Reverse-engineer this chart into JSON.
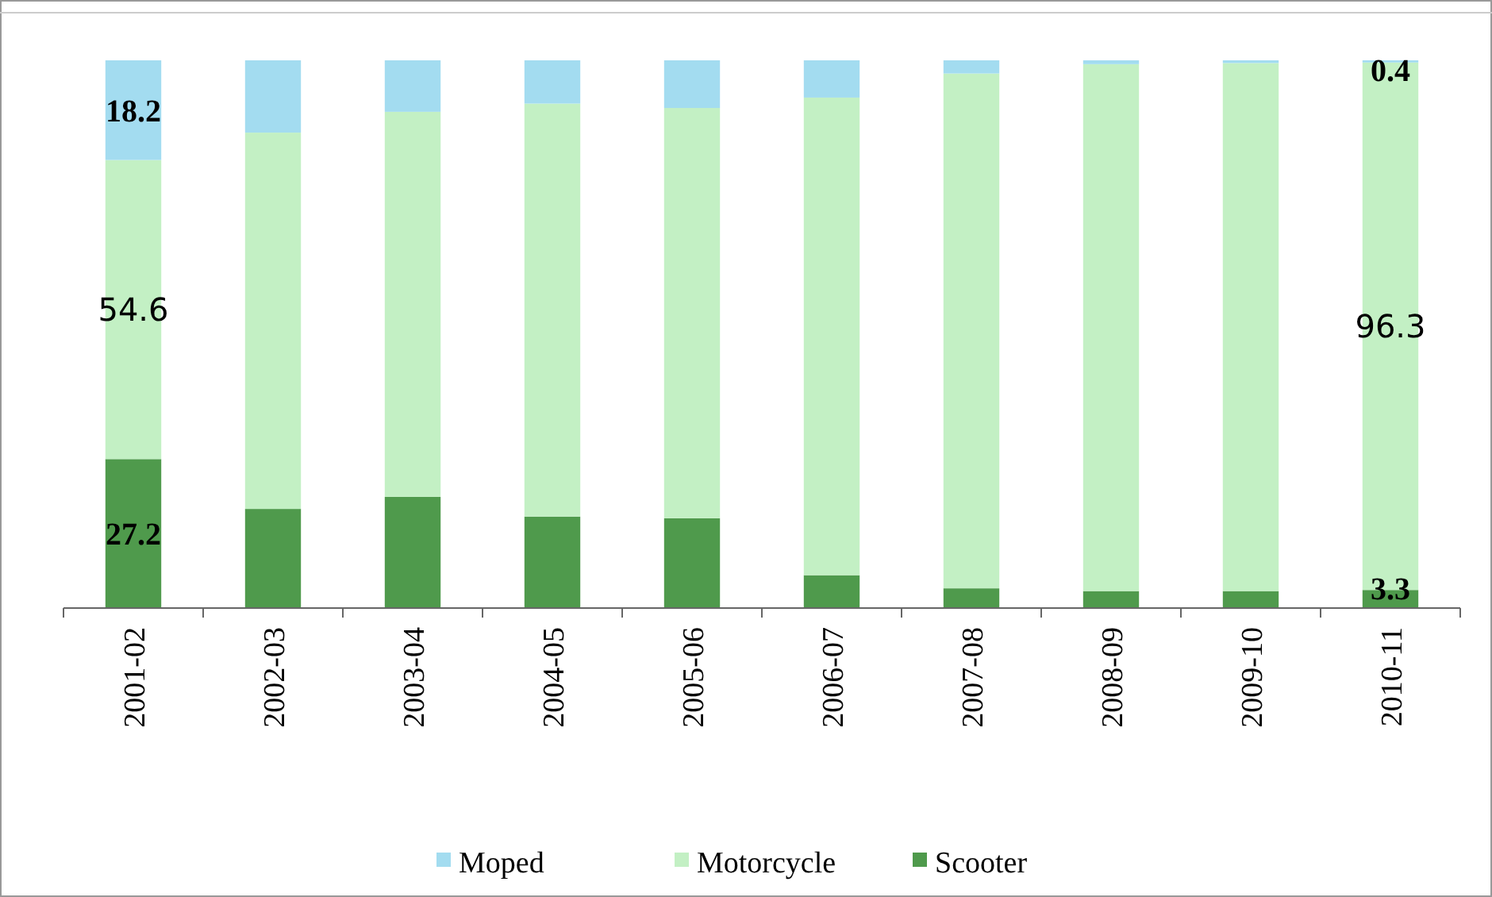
{
  "chart_data": {
    "type": "bar",
    "stacked": true,
    "categories": [
      "2001-02",
      "2002-03",
      "2003-04",
      "2004-05",
      "2005-06",
      "2006-07",
      "2007-08",
      "2008-09",
      "2009-10",
      "2010-11"
    ],
    "series": [
      {
        "name": "Scooter",
        "color": "#4f9a4c",
        "values": [
          27.2,
          18.1,
          20.3,
          16.7,
          16.4,
          6.0,
          3.6,
          3.1,
          3.1,
          3.3
        ],
        "value_labels": [
          "27.2",
          null,
          null,
          null,
          null,
          null,
          null,
          null,
          null,
          "3.3"
        ]
      },
      {
        "name": "Motorcycle",
        "color": "#c3f0c4",
        "values": [
          54.6,
          68.7,
          70.3,
          75.4,
          74.9,
          87.2,
          94.0,
          96.2,
          96.4,
          96.3
        ],
        "value_labels": [
          "54.6",
          null,
          null,
          null,
          null,
          null,
          null,
          null,
          null,
          "96.3"
        ]
      },
      {
        "name": "Moped",
        "color": "#a3dcf0",
        "values": [
          18.2,
          13.2,
          9.4,
          7.9,
          8.7,
          6.8,
          2.4,
          0.7,
          0.5,
          0.4
        ],
        "value_labels": [
          "18.2",
          null,
          null,
          null,
          null,
          null,
          null,
          null,
          null,
          "0.4"
        ]
      }
    ],
    "ylim": [
      0,
      100
    ],
    "tick_labels": "x",
    "legend": "bottom"
  }
}
